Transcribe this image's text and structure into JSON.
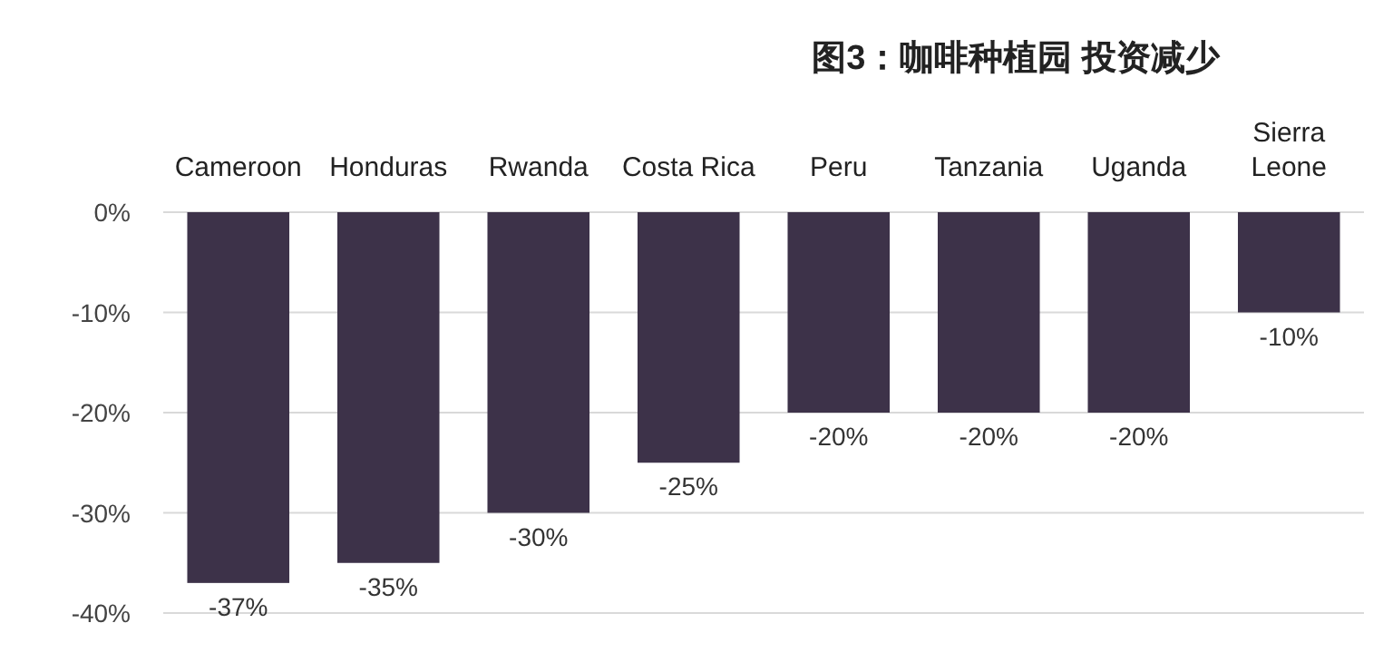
{
  "chart_data": {
    "type": "bar",
    "title": "图3：咖啡种植园 投资减少",
    "categories": [
      "Cameroon",
      "Honduras",
      "Rwanda",
      "Costa Rica",
      "Peru",
      "Tanzania",
      "Uganda",
      "Sierra Leone"
    ],
    "values": [
      -37,
      -35,
      -30,
      -25,
      -20,
      -20,
      -20,
      -10
    ],
    "value_labels": [
      "-37%",
      "-35%",
      "-30%",
      "-25%",
      "-20%",
      "-20%",
      "-20%",
      "-10%"
    ],
    "color": "#3d3249",
    "ylim": [
      -40,
      0
    ],
    "yticks": [
      {
        "value": 0,
        "label": "0%"
      },
      {
        "value": -10,
        "label": "-10%"
      },
      {
        "value": -20,
        "label": "-20%"
      },
      {
        "value": -30,
        "label": "-30%"
      },
      {
        "value": -40,
        "label": "-40%"
      }
    ],
    "grid": "y"
  }
}
